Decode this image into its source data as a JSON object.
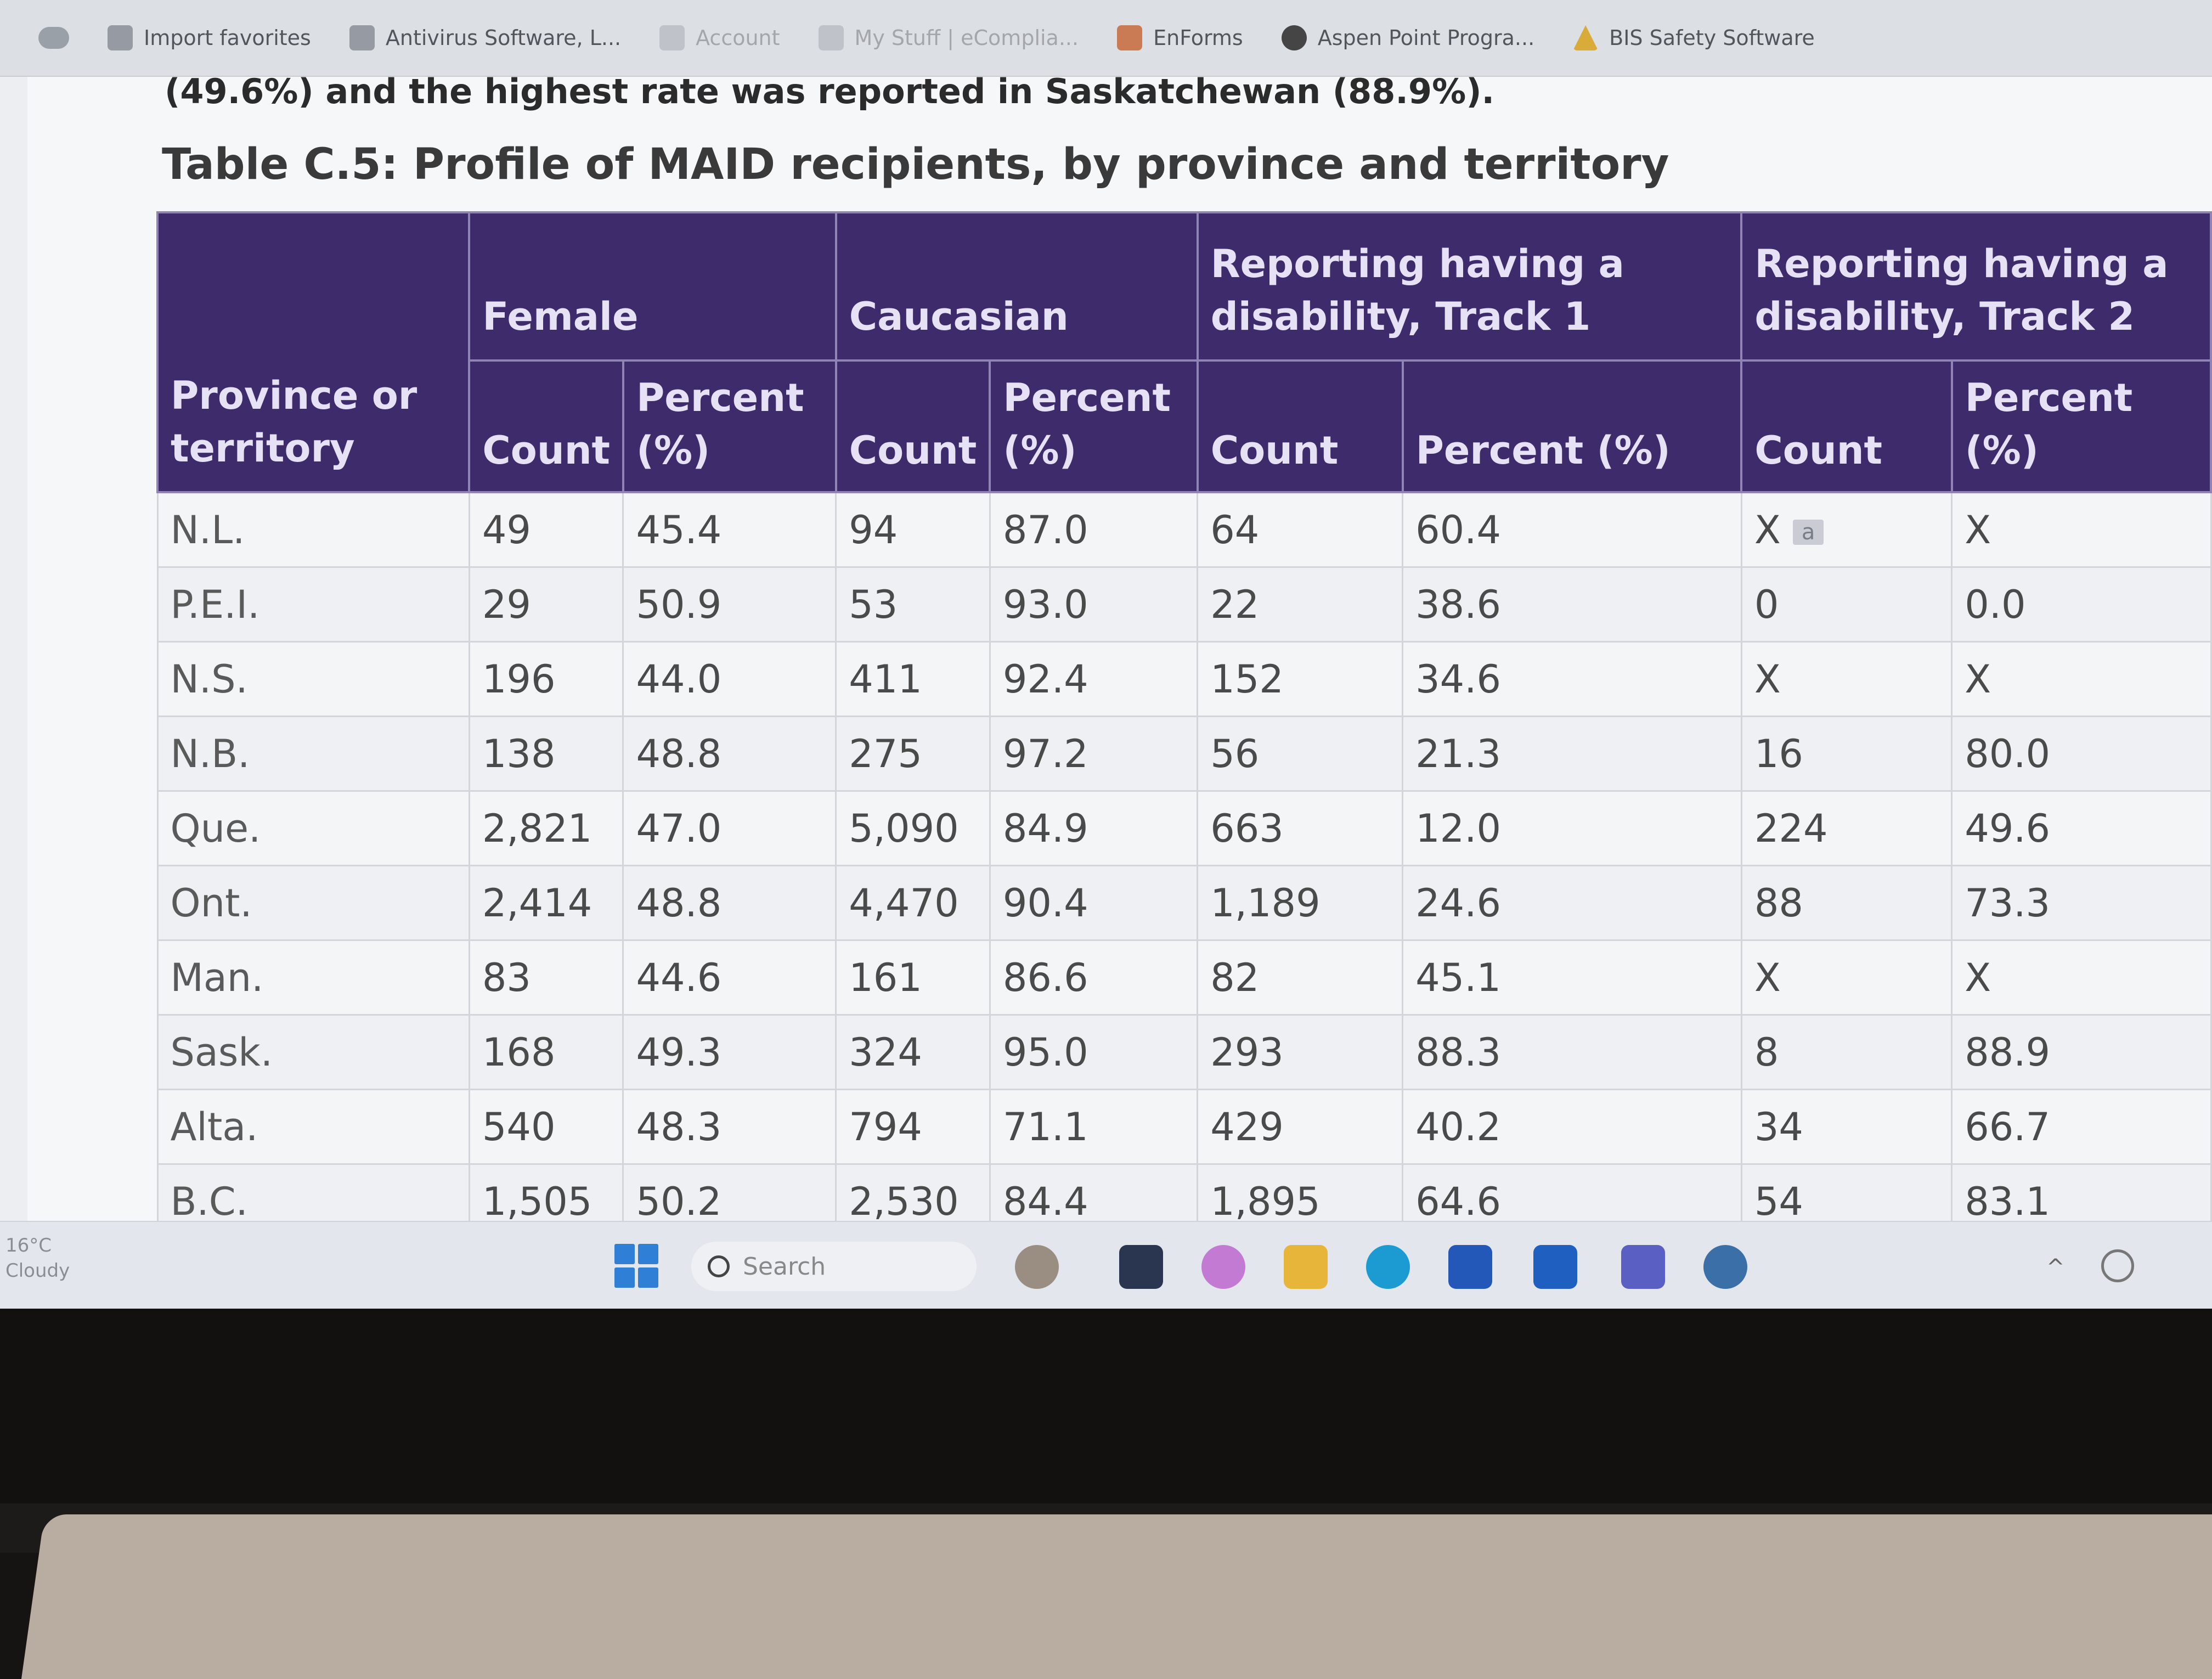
{
  "favorites_bar": {
    "items": [
      {
        "label": "Import favorites",
        "icon": "import-icon"
      },
      {
        "label": "Antivirus Software, L...",
        "icon": "shield-icon"
      },
      {
        "label": "Account",
        "icon": "account-icon"
      },
      {
        "label": "My Stuff | eComplia...",
        "icon": "page-icon"
      },
      {
        "label": "EnForms",
        "icon": "enforms-icon"
      },
      {
        "label": "Aspen Point Progra...",
        "icon": "aspen-icon"
      },
      {
        "label": "BIS Safety Software",
        "icon": "warning-icon"
      }
    ]
  },
  "page": {
    "intro_text": "(49.6%) and the highest rate was reported in Saskatchewan (88.9%).",
    "table_title": "Table C.5: Profile of MAID recipients, by province and territory"
  },
  "table": {
    "headers": {
      "province": "Province or territory",
      "groups": [
        "Female",
        "Caucasian",
        "Reporting having a disability, Track 1",
        "Reporting having a disability, Track 2"
      ],
      "count": "Count",
      "percent": "Percent (%)"
    },
    "superscript": "a",
    "rows": [
      {
        "province": "N.L.",
        "cells": [
          "49",
          "45.4",
          "94",
          "87.0",
          "64",
          "60.4",
          "X",
          "X"
        ]
      },
      {
        "province": "P.E.I.",
        "cells": [
          "29",
          "50.9",
          "53",
          "93.0",
          "22",
          "38.6",
          "0",
          "0.0"
        ]
      },
      {
        "province": "N.S.",
        "cells": [
          "196",
          "44.0",
          "411",
          "92.4",
          "152",
          "34.6",
          "X",
          "X"
        ]
      },
      {
        "province": "N.B.",
        "cells": [
          "138",
          "48.8",
          "275",
          "97.2",
          "56",
          "21.3",
          "16",
          "80.0"
        ]
      },
      {
        "province": "Que.",
        "cells": [
          "2,821",
          "47.0",
          "5,090",
          "84.9",
          "663",
          "12.0",
          "224",
          "49.6"
        ]
      },
      {
        "province": "Ont.",
        "cells": [
          "2,414",
          "48.8",
          "4,470",
          "90.4",
          "1,189",
          "24.6",
          "88",
          "73.3"
        ]
      },
      {
        "province": "Man.",
        "cells": [
          "83",
          "44.6",
          "161",
          "86.6",
          "82",
          "45.1",
          "X",
          "X"
        ]
      },
      {
        "province": "Sask.",
        "cells": [
          "168",
          "49.3",
          "324",
          "95.0",
          "293",
          "88.3",
          "8",
          "88.9"
        ]
      },
      {
        "province": "Alta.",
        "cells": [
          "540",
          "48.3",
          "794",
          "71.1",
          "429",
          "40.2",
          "34",
          "66.7"
        ]
      },
      {
        "province": "B.C.",
        "cells": [
          "1,505",
          "50.2",
          "2,530",
          "84.4",
          "1,895",
          "64.6",
          "54",
          "83.1"
        ]
      }
    ]
  },
  "taskbar": {
    "weather": "16°C",
    "weather_sub": "Cloudy",
    "search_placeholder": "Search",
    "apps": [
      "widgets-icon",
      "file-explorer-icon",
      "copilot-icon",
      "folder-icon",
      "edge-icon",
      "store-icon",
      "l-app-icon",
      "teams-icon",
      "cloud-icon"
    ]
  }
}
